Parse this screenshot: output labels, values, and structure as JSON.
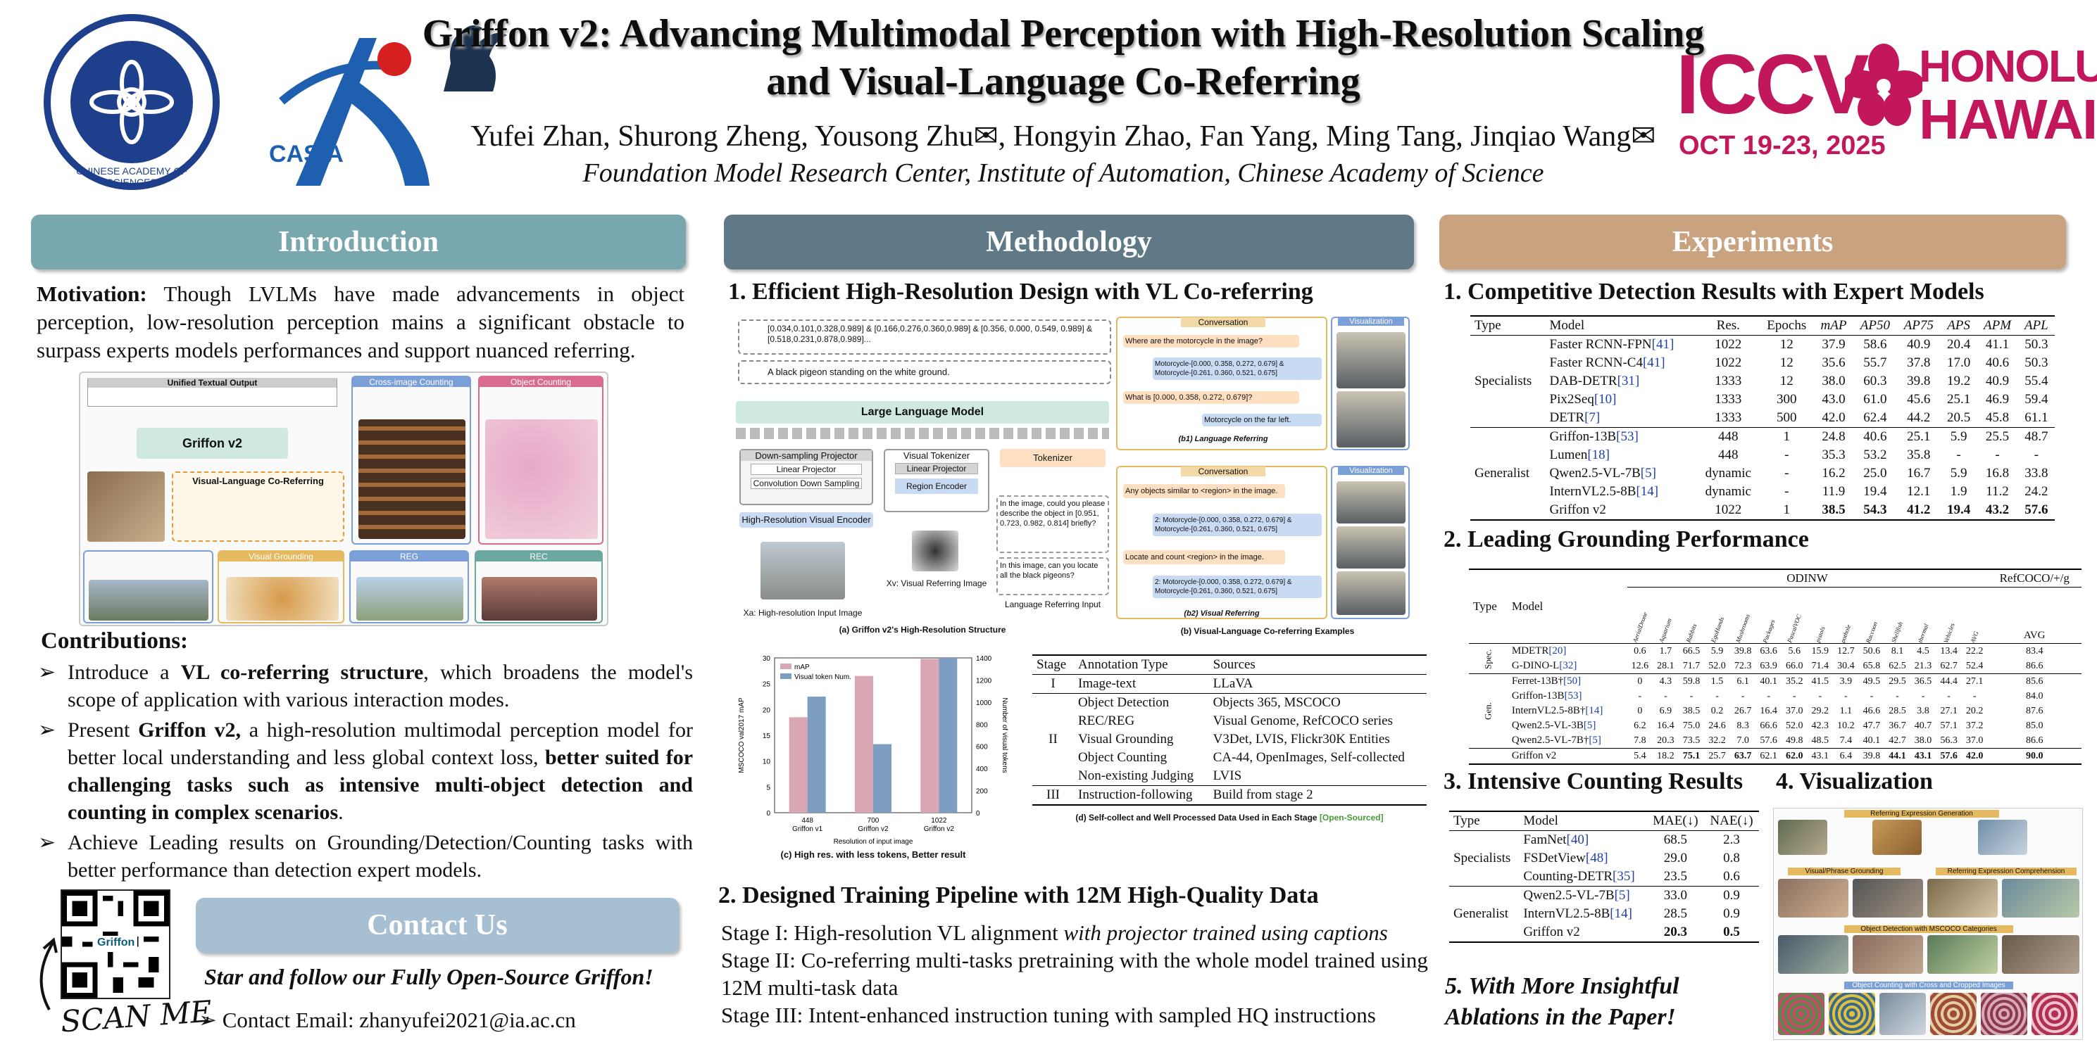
{
  "header": {
    "title": "Griffon v2: Advancing Multimodal Perception with High-Resolution Scaling and Visual-Language Co-Referring",
    "authors": "Yufei Zhan, Shurong Zheng, Yousong Zhu✉, Hongyin Zhao, Fan Yang, Ming Tang, Jinqiao Wang✉",
    "affiliation": "Foundation Model Research Center, Institute of Automation, Chinese Academy of Science",
    "casia_text": "CASIA",
    "cas_ring_text": "CHINESE ACADEMY OF SCIENCES",
    "iccv": {
      "name": "ICCV",
      "city": "HONOLULU",
      "state": "HAWAII",
      "dates": "OCT 19-23, 2025"
    }
  },
  "intro": {
    "heading": "Introduction",
    "motivation_label": "Motivation:",
    "motivation_text": " Though LVLMs have made advancements in object perception, low-resolution perception mains a significant obstacle to surpass experts models performances and support nuanced referring.",
    "fig_labels": {
      "unified": "Unified Textual Output",
      "griffon": "Griffon v2",
      "vlcoref": "Visual-Language Co-Referring",
      "cross_image": "Cross-image Counting",
      "object_counting": "Object Counting",
      "visual_grounding": "Visual Grounding",
      "reg": "REG",
      "rec": "REC"
    },
    "contributions_label": "Contributions:",
    "contributions": [
      {
        "pre": "Introduce a ",
        "bold": "VL co-referring structure",
        "post": ", which broadens the model's scope of application with various interaction modes."
      },
      {
        "pre": "Present ",
        "bold": "Griffon v2,",
        "post": " a high-resolution multimodal perception model for better local understanding and less global context loss, ",
        "bold2": "better suited for challenging tasks such as intensive multi-object detection and counting in complex scenarios",
        "post2": "."
      },
      {
        "pre": "Achieve Leading results on Grounding/Detection/Counting tasks with better performance than detection expert models.",
        "bold": "",
        "post": ""
      }
    ]
  },
  "contact": {
    "heading": "Contact Us",
    "star": "Star and follow our Fully Open-Source Griffon!",
    "email": "Contact Email: zhanyufei2021@ia.ac.cn",
    "scan": "SCAN ME",
    "qr_label": "Griffon"
  },
  "method": {
    "heading": "Methodology",
    "sub1": "1. Efficient High-Resolution Design with VL Co-referring",
    "diagram": {
      "llm": "Large Language Model",
      "downsample": "Down-sampling Projector",
      "linear": "Linear Projector",
      "conv": "Convolution Down Sampling",
      "hr_encoder": "High-Resolution Visual Encoder",
      "visual_tokenizer": "Visual Tokenizer",
      "linear2": "Linear Projector",
      "region_encoder": "Region Encoder",
      "tokenizer": "Tokenizer",
      "xa_input": "Xa: High-resolution Input Image",
      "xv_input": "Xv: Visual Referring Image",
      "lang_input": "Language Referring Input",
      "output1": "[0.034,0.101,0.328,0.989] & [0.166,0.276,0.360,0.989] & [0.356, 0.000, 0.549, 0.989] & [0.518,0.231,0.878,0.989]...",
      "output2": "A black pigeon standing on the white ground.",
      "query1": "In the image, could you please describe the object in [0.951, 0.723, 0.982, 0.814] briefly?",
      "query2": "In this image, can you locate all the black pigeons?",
      "cap_a": "(a) Griffon v2's High-Resolution Structure",
      "conv_label": "Conversation",
      "vis_label": "Visualization",
      "q_lang": "Where are the motorcycle in the image?",
      "a_lang": "Motorcycle-[0.000, 0.358, 0.272, 0.679] & Motorcycle-[0.261, 0.360, 0.521, 0.675]",
      "q_lang2": "What is [0.000, 0.358, 0.272, 0.679]?",
      "a_lang2": "Motorcycle on the far left.",
      "cap_b1": "(b1) Language Referring",
      "q_vis": "Any objects similar to <region> in the image.",
      "a_vis": "2: Motorcycle-[0.000, 0.358, 0.272, 0.679] & Motorcycle-[0.261, 0.360, 0.521, 0.675]",
      "q_vis2": "Locate and count <region> in the image.",
      "a_vis2": "2: Motorcycle-[0.000, 0.358, 0.272, 0.679] & Motorcycle-[0.261, 0.360, 0.521, 0.675]",
      "cap_b2": "(b2) Visual Referring",
      "cap_b": "(b) Visual-Language Co-referring Examples"
    },
    "stage_table": {
      "headers": [
        "Stage",
        "Annotation Type",
        "Sources"
      ],
      "rows": [
        {
          "stage": "I",
          "types": [
            "Image-text"
          ],
          "sources": [
            "LLaVA"
          ]
        },
        {
          "stage": "II",
          "types": [
            "Object Detection",
            "REC/REG",
            "Visual Grounding",
            "Object Counting",
            "Non-existing Judging"
          ],
          "sources": [
            "Objects 365, MSCOCO",
            "Visual Genome, RefCOCO series",
            "V3Det, LVIS, Flickr30K Entities",
            "CA-44, OpenImages, Self-collected",
            "LVIS"
          ]
        },
        {
          "stage": "III",
          "types": [
            "Instruction-following"
          ],
          "sources": [
            "Build from stage 2"
          ]
        }
      ],
      "caption": "(d) Self-collect and Well Processed Data Used in Each Stage",
      "caption_tag": "[Open-Sourced]"
    },
    "sub2": "2. Designed Training Pipeline with 12M High-Quality Data",
    "stages": [
      {
        "label": "Stage I: ",
        "text": "High-resolution VL alignment ",
        "italic": "with projector trained using captions"
      },
      {
        "label": "Stage II: ",
        "text": " Co-referring multi-tasks pretraining with the whole model trained using 12M multi-task data",
        "italic": ""
      },
      {
        "label": "Stage III: ",
        "text": "Intent-enhanced instruction tuning with sampled HQ instructions",
        "italic": ""
      }
    ]
  },
  "chart_data": {
    "type": "bar",
    "categories": [
      "448\nGriffon v1",
      "700\nGriffon v2",
      "1022\nGriffon v2"
    ],
    "series": [
      {
        "name": "mAP",
        "values": [
          18.5,
          26.5,
          29.8
        ],
        "axis": "left",
        "color": "#d9a7b3"
      },
      {
        "name": "Visual token Num.",
        "values": [
          1050,
          620,
          1400
        ],
        "axis": "right",
        "color": "#7d9ec0"
      }
    ],
    "xlabel": "Resolution of input image",
    "ylabel": "MSCOCO val2017 mAP",
    "ylabel_right": "Number of visual tokens",
    "ylim": [
      0,
      30
    ],
    "ylim_right": [
      0,
      1400
    ],
    "yticks": [
      0,
      5,
      10,
      15,
      20,
      25,
      30
    ],
    "yticks_right": [
      0,
      200,
      400,
      600,
      800,
      1000,
      1200,
      1400
    ],
    "legend": "top-left",
    "caption": "(c) High res. with less tokens, Better result"
  },
  "experiments": {
    "heading": "Experiments",
    "sub1": "1. Competitive Detection Results with Expert Models",
    "det_headers": [
      "Type",
      "Model",
      "Res.",
      "Epochs",
      "mAP",
      "AP50",
      "AP75",
      "APS",
      "APM",
      "APL"
    ],
    "det_groups": [
      {
        "type": "Specialists",
        "rows": [
          {
            "model": "Faster RCNN-FPN",
            "ref": "[41]",
            "vals": [
              "1022",
              "12",
              "37.9",
              "58.6",
              "40.9",
              "20.4",
              "41.1",
              "50.3"
            ]
          },
          {
            "model": "Faster RCNN-C4",
            "ref": "[41]",
            "vals": [
              "1022",
              "12",
              "35.6",
              "55.7",
              "37.8",
              "17.0",
              "40.6",
              "50.3"
            ]
          },
          {
            "model": "DAB-DETR",
            "ref": "[31]",
            "vals": [
              "1333",
              "12",
              "38.0",
              "60.3",
              "39.8",
              "19.2",
              "40.9",
              "55.4"
            ]
          },
          {
            "model": "Pix2Seq",
            "ref": "[10]",
            "vals": [
              "1333",
              "300",
              "43.0",
              "61.0",
              "45.6",
              "25.1",
              "46.9",
              "59.4"
            ]
          },
          {
            "model": "DETR",
            "ref": "[7]",
            "vals": [
              "1333",
              "500",
              "42.0",
              "62.4",
              "44.2",
              "20.5",
              "45.8",
              "61.1"
            ]
          }
        ]
      },
      {
        "type": "Generalist",
        "rows": [
          {
            "model": "Griffon-13B",
            "ref": "[53]",
            "vals": [
              "448",
              "1",
              "24.8",
              "40.6",
              "25.1",
              "5.9",
              "25.5",
              "48.7"
            ]
          },
          {
            "model": "Lumen",
            "ref": "[18]",
            "vals": [
              "448",
              "-",
              "35.3",
              "53.2",
              "35.8",
              "-",
              "-",
              "-"
            ]
          },
          {
            "model": "Qwen2.5-VL-7B",
            "ref": "[5]",
            "vals": [
              "dynamic",
              "-",
              "16.2",
              "25.0",
              "16.7",
              "5.9",
              "16.8",
              "33.8"
            ]
          },
          {
            "model": "InternVL2.5-8B",
            "ref": "[14]",
            "vals": [
              "dynamic",
              "-",
              "11.9",
              "19.4",
              "12.1",
              "1.9",
              "11.2",
              "24.2"
            ]
          },
          {
            "model": "Griffon v2",
            "ref": "",
            "vals": [
              "1022",
              "1",
              "38.5",
              "54.3",
              "41.2",
              "19.4",
              "43.2",
              "57.6"
            ],
            "bold_cols": [
              2,
              3,
              4,
              5,
              6,
              7
            ]
          }
        ]
      }
    ],
    "sub2": "2. Leading Grounding Performance",
    "gr_headers": {
      "type": "Type",
      "model": "Model",
      "odinw": "ODINW",
      "refcoco": "RefCOCO/+/g",
      "avg": "AVG"
    },
    "gr_cols": [
      "AerialDrone",
      "Aquarium",
      "Rabbits",
      "EgoHands",
      "Mushrooms",
      "Packages",
      "PascalVOC",
      "pistols",
      "pothole",
      "Raccoon",
      "Shellfish",
      "thermal",
      "Vehicles",
      "AVG"
    ],
    "gr_groups": [
      {
        "type": "Spec.",
        "rows": [
          {
            "model": "MDETR",
            "ref": "[20]",
            "vals": [
              "0.6",
              "1.7",
              "66.5",
              "5.9",
              "39.8",
              "63.6",
              "5.6",
              "15.9",
              "12.7",
              "50.6",
              "8.1",
              "4.5",
              "13.4",
              "22.2",
              "83.4"
            ]
          },
          {
            "model": "G-DINO-L",
            "ref": "[32]",
            "vals": [
              "12.6",
              "28.1",
              "71.7",
              "52.0",
              "72.3",
              "63.9",
              "66.0",
              "71.4",
              "30.4",
              "65.8",
              "62.5",
              "21.3",
              "62.7",
              "52.4",
              "86.6"
            ]
          }
        ]
      },
      {
        "type": "Gen.",
        "rows": [
          {
            "model": "Ferret-13B†",
            "ref": "[50]",
            "vals": [
              "0",
              "4.3",
              "59.8",
              "1.5",
              "6.1",
              "40.1",
              "35.2",
              "41.5",
              "3.9",
              "49.5",
              "29.5",
              "36.5",
              "44.4",
              "27.1",
              "85.6"
            ]
          },
          {
            "model": "Griffon-13B",
            "ref": "[53]",
            "vals": [
              "-",
              "-",
              "-",
              "-",
              "-",
              "-",
              "-",
              "-",
              "-",
              "-",
              "-",
              "-",
              "-",
              "-",
              "84.0"
            ]
          },
          {
            "model": "InternVL2.5-8B†",
            "ref": "[14]",
            "vals": [
              "0",
              "6.9",
              "38.5",
              "0.2",
              "26.7",
              "16.4",
              "37.0",
              "29.2",
              "1.1",
              "46.6",
              "28.5",
              "3.8",
              "27.1",
              "20.2",
              "87.6"
            ]
          },
          {
            "model": "Qwen2.5-VL-3B",
            "ref": "[5]",
            "vals": [
              "6.2",
              "16.4",
              "75.0",
              "24.6",
              "8.3",
              "66.6",
              "52.0",
              "42.3",
              "10.2",
              "47.7",
              "36.7",
              "40.7",
              "57.1",
              "37.2",
              "85.0"
            ]
          },
          {
            "model": "Qwen2.5-VL-7B†",
            "ref": "[5]",
            "vals": [
              "7.8",
              "20.3",
              "73.5",
              "32.2",
              "7.0",
              "57.6",
              "49.8",
              "48.5",
              "7.4",
              "40.1",
              "42.7",
              "38.0",
              "56.3",
              "37.0",
              "86.6"
            ]
          }
        ]
      },
      {
        "type": "",
        "rows": [
          {
            "model": "Griffon v2",
            "ref": "",
            "vals": [
              "5.4",
              "18.2",
              "75.1",
              "25.7",
              "63.7",
              "62.1",
              "62.0",
              "43.1",
              "6.4",
              "39.8",
              "44.1",
              "43.1",
              "57.6",
              "42.0",
              "90.0"
            ]
          }
        ]
      }
    ],
    "sub3": "3. Intensive Counting Results",
    "cnt_headers": [
      "Type",
      "Model",
      "MAE(↓)",
      "NAE(↓)"
    ],
    "cnt_groups": [
      {
        "type": "Specialists",
        "rows": [
          {
            "model": "FamNet",
            "ref": "[40]",
            "vals": [
              "68.5",
              "2.3"
            ]
          },
          {
            "model": "FSDetView",
            "ref": "[48]",
            "vals": [
              "29.0",
              "0.8"
            ]
          },
          {
            "model": "Counting-DETR",
            "ref": "[35]",
            "vals": [
              "23.5",
              "0.6"
            ]
          }
        ]
      },
      {
        "type": "Generalist",
        "rows": [
          {
            "model": "Qwen2.5-VL-7B",
            "ref": "[5]",
            "vals": [
              "33.0",
              "0.9"
            ]
          },
          {
            "model": "InternVL2.5-8B",
            "ref": "[14]",
            "vals": [
              "28.5",
              "0.9"
            ]
          },
          {
            "model": "Griffon v2",
            "ref": "",
            "vals": [
              "20.3",
              "0.5"
            ],
            "bold": true
          }
        ]
      }
    ],
    "sub4": "4. Visualization",
    "vis_labels": {
      "v1": "Referring Expression Generation",
      "v2": "Visual/Phrase Grounding",
      "v3": "Referring Expression Comprehension",
      "v4": "Object Detection with MSCOCO Categories",
      "v5": "Object Counting with Cross and Cropped Images"
    },
    "sub5_line1": "5. With More Insightful",
    "sub5_line2": "Ablations in the Paper!"
  },
  "colors": {
    "intro_head": "#78a7ad",
    "method_head": "#5f7a86",
    "exp_head": "#c9a37f",
    "contact_head": "#a6bfd2",
    "cas_blue": "#1e3f8c",
    "iccv_magenta": "#c2185b",
    "ref_blue": "#2140a8"
  }
}
